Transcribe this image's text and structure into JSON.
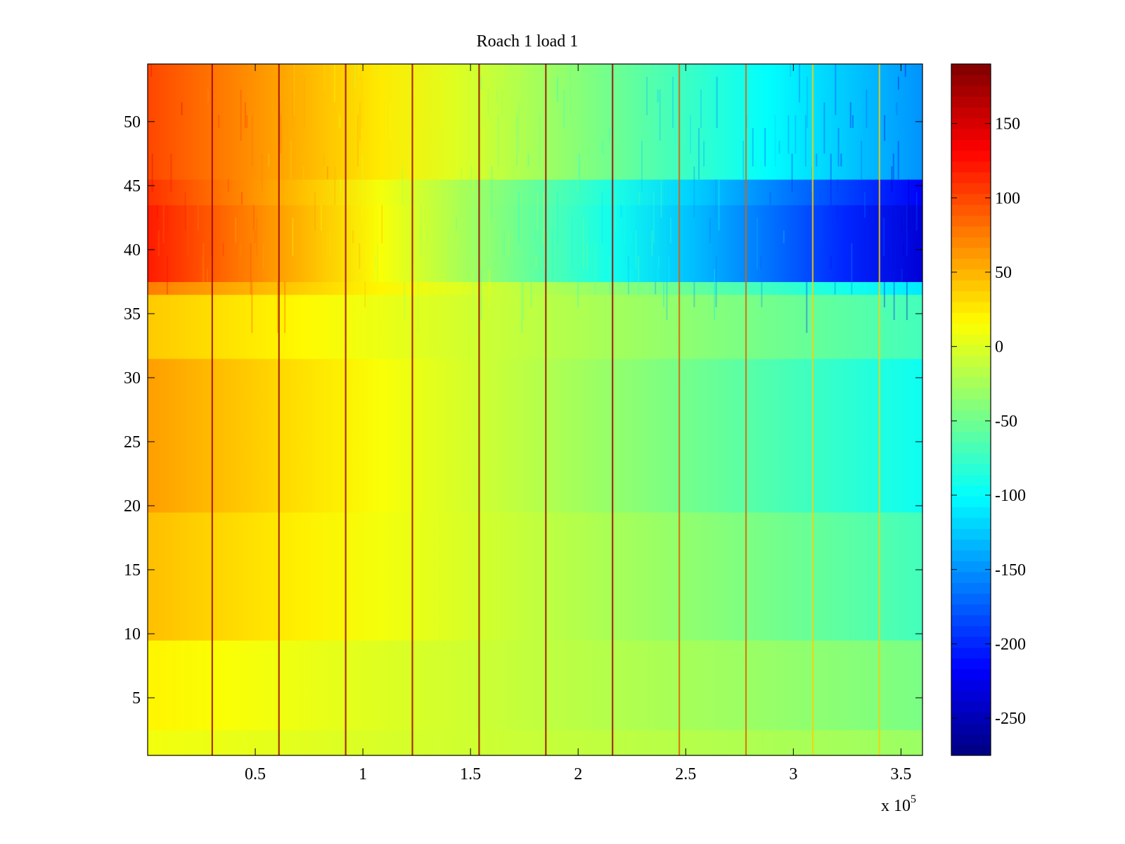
{
  "chart_data": {
    "type": "heatmap",
    "title": "Roach 1 load 1",
    "x_exponent_label": "x 10",
    "x_exponent_power": "5",
    "xlim": [
      0,
      360000
    ],
    "ylim": [
      0.5,
      54.5
    ],
    "x_ticks": [
      {
        "value": 50000,
        "label": "0.5"
      },
      {
        "value": 100000,
        "label": "1"
      },
      {
        "value": 150000,
        "label": "1.5"
      },
      {
        "value": 200000,
        "label": "2"
      },
      {
        "value": 250000,
        "label": "2.5"
      },
      {
        "value": 300000,
        "label": "3"
      },
      {
        "value": 350000,
        "label": "3.5"
      }
    ],
    "y_ticks": [
      {
        "value": 5,
        "label": "5"
      },
      {
        "value": 10,
        "label": "10"
      },
      {
        "value": 15,
        "label": "15"
      },
      {
        "value": 20,
        "label": "20"
      },
      {
        "value": 25,
        "label": "25"
      },
      {
        "value": 30,
        "label": "30"
      },
      {
        "value": 35,
        "label": "35"
      },
      {
        "value": 40,
        "label": "40"
      },
      {
        "value": 45,
        "label": "45"
      },
      {
        "value": 50,
        "label": "50"
      }
    ],
    "colorbar": {
      "colormap": "jet",
      "clim": [
        -275,
        190
      ],
      "ticks": [
        {
          "value": 150,
          "label": "150"
        },
        {
          "value": 100,
          "label": "100"
        },
        {
          "value": 50,
          "label": "50"
        },
        {
          "value": 0,
          "label": "0"
        },
        {
          "value": -50,
          "label": "-50"
        },
        {
          "value": -100,
          "label": "-100"
        },
        {
          "value": -150,
          "label": "-150"
        },
        {
          "value": -200,
          "label": "-200"
        },
        {
          "value": -250,
          "label": "-250"
        }
      ]
    },
    "rows": 54,
    "row_bands": [
      {
        "from": 1,
        "to": 2,
        "left": 10,
        "right": -30
      },
      {
        "from": 3,
        "to": 9,
        "left": 20,
        "right": -45
      },
      {
        "from": 10,
        "to": 19,
        "left": 45,
        "right": -70
      },
      {
        "from": 20,
        "to": 31,
        "left": 60,
        "right": -95
      },
      {
        "from": 32,
        "to": 36,
        "left": 40,
        "right": -70
      },
      {
        "from": 37,
        "to": 37,
        "left": 75,
        "right": -110
      },
      {
        "from": 38,
        "to": 43,
        "left": 120,
        "right": -235
      },
      {
        "from": 44,
        "to": 45,
        "left": 110,
        "right": -220
      },
      {
        "from": 46,
        "to": 54,
        "left": 100,
        "right": -150
      }
    ],
    "stripes_x": [
      30000,
      61000,
      92000,
      123000,
      154000,
      185000,
      216000,
      247000,
      278000,
      309000,
      340000
    ]
  }
}
